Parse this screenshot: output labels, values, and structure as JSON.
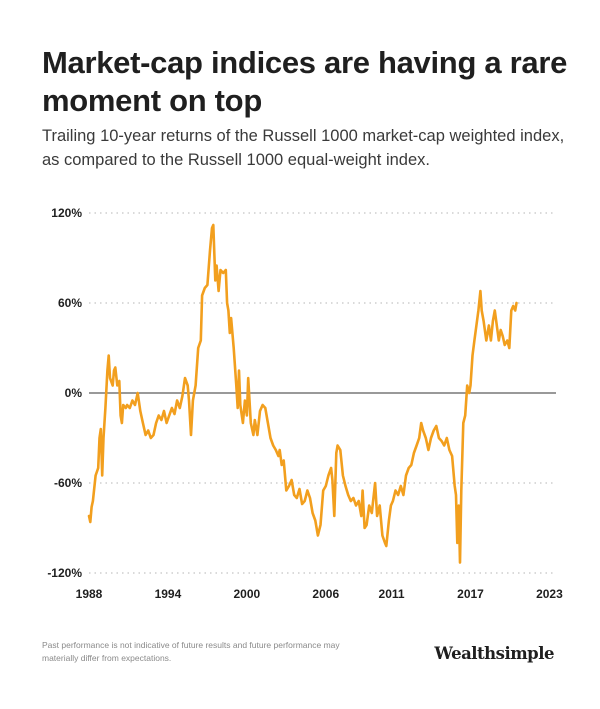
{
  "title": "Market-cap indices are having a rare moment on top",
  "subtitle": "Trailing 10-year returns of the Russell 1000 market-cap weighted index, as compared to the Russell 1000 equal-weight index.",
  "footnote": "Past performance is not indicative of future results and future performance may materially differ from expectations.",
  "brand": "Wealthsimple",
  "colors": {
    "line": "#f29f1e",
    "zero_line": "#333333",
    "grid": "#b5b5b5"
  },
  "chart_data": {
    "type": "line",
    "title": "Market-cap indices are having a rare moment on top",
    "xlim": [
      1988,
      2023.5
    ],
    "ylim": [
      -120,
      120
    ],
    "y_ticks": [
      120,
      60,
      0,
      -60,
      -120
    ],
    "y_tick_labels": [
      "120%",
      "60%",
      "0%",
      "-60%",
      "-120%"
    ],
    "x_ticks": [
      1988,
      1994,
      2000,
      2006,
      2011,
      2017,
      2023
    ],
    "x_tick_labels": [
      "1988",
      "1994",
      "2000",
      "2006",
      "2011",
      "2017",
      "2023"
    ],
    "grid": "horizontal dotted",
    "zero_line": true,
    "series": [
      {
        "points": [
          [
            1988.0,
            -82
          ],
          [
            1988.1,
            -86
          ],
          [
            1988.2,
            -76
          ],
          [
            1988.3,
            -72
          ],
          [
            1988.5,
            -55
          ],
          [
            1988.7,
            -50
          ],
          [
            1988.8,
            -30
          ],
          [
            1988.9,
            -24
          ],
          [
            1989.0,
            -55
          ],
          [
            1989.1,
            -30
          ],
          [
            1989.25,
            -10
          ],
          [
            1989.4,
            15
          ],
          [
            1989.5,
            25
          ],
          [
            1989.6,
            10
          ],
          [
            1989.8,
            5
          ],
          [
            1989.9,
            15
          ],
          [
            1990.0,
            17
          ],
          [
            1990.15,
            5
          ],
          [
            1990.3,
            8
          ],
          [
            1990.4,
            -15
          ],
          [
            1990.5,
            -20
          ],
          [
            1990.6,
            -8
          ],
          [
            1990.8,
            -10
          ],
          [
            1990.9,
            -8
          ],
          [
            1991.1,
            -10
          ],
          [
            1991.3,
            -5
          ],
          [
            1991.5,
            -8
          ],
          [
            1991.7,
            0
          ],
          [
            1991.9,
            -12
          ],
          [
            1992.1,
            -20
          ],
          [
            1992.3,
            -28
          ],
          [
            1992.5,
            -25
          ],
          [
            1992.7,
            -30
          ],
          [
            1992.9,
            -28
          ],
          [
            1993.1,
            -20
          ],
          [
            1993.3,
            -15
          ],
          [
            1993.5,
            -18
          ],
          [
            1993.7,
            -12
          ],
          [
            1993.9,
            -20
          ],
          [
            1994.1,
            -15
          ],
          [
            1994.3,
            -10
          ],
          [
            1994.5,
            -14
          ],
          [
            1994.7,
            -5
          ],
          [
            1994.9,
            -10
          ],
          [
            1995.1,
            -2
          ],
          [
            1995.3,
            10
          ],
          [
            1995.5,
            5
          ],
          [
            1995.6,
            -5
          ],
          [
            1995.75,
            -28
          ],
          [
            1995.9,
            -5
          ],
          [
            1996.1,
            5
          ],
          [
            1996.3,
            30
          ],
          [
            1996.5,
            35
          ],
          [
            1996.6,
            65
          ],
          [
            1996.8,
            70
          ],
          [
            1997.0,
            72
          ],
          [
            1997.2,
            95
          ],
          [
            1997.35,
            110
          ],
          [
            1997.45,
            112
          ],
          [
            1997.6,
            75
          ],
          [
            1997.7,
            85
          ],
          [
            1997.85,
            68
          ],
          [
            1998.0,
            82
          ],
          [
            1998.2,
            80
          ],
          [
            1998.4,
            82
          ],
          [
            1998.5,
            60
          ],
          [
            1998.6,
            55
          ],
          [
            1998.7,
            40
          ],
          [
            1998.8,
            50
          ],
          [
            1999.0,
            30
          ],
          [
            1999.2,
            5
          ],
          [
            1999.3,
            -10
          ],
          [
            1999.4,
            15
          ],
          [
            1999.5,
            -8
          ],
          [
            1999.7,
            -20
          ],
          [
            1999.85,
            -5
          ],
          [
            2000.0,
            -15
          ],
          [
            2000.1,
            10
          ],
          [
            2000.3,
            -20
          ],
          [
            2000.5,
            -28
          ],
          [
            2000.6,
            -18
          ],
          [
            2000.8,
            -28
          ],
          [
            2001.0,
            -12
          ],
          [
            2001.2,
            -8
          ],
          [
            2001.4,
            -10
          ],
          [
            2001.6,
            -20
          ],
          [
            2001.8,
            -30
          ],
          [
            2002.0,
            -35
          ],
          [
            2002.2,
            -38
          ],
          [
            2002.4,
            -42
          ],
          [
            2002.5,
            -38
          ],
          [
            2002.65,
            -48
          ],
          [
            2002.8,
            -45
          ],
          [
            2003.0,
            -65
          ],
          [
            2003.2,
            -62
          ],
          [
            2003.4,
            -58
          ],
          [
            2003.6,
            -68
          ],
          [
            2003.8,
            -70
          ],
          [
            2004.0,
            -64
          ],
          [
            2004.2,
            -74
          ],
          [
            2004.4,
            -72
          ],
          [
            2004.6,
            -65
          ],
          [
            2004.8,
            -70
          ],
          [
            2005.0,
            -80
          ],
          [
            2005.2,
            -85
          ],
          [
            2005.4,
            -95
          ],
          [
            2005.6,
            -88
          ],
          [
            2005.8,
            -65
          ],
          [
            2006.0,
            -62
          ],
          [
            2006.2,
            -55
          ],
          [
            2006.4,
            -50
          ],
          [
            2006.5,
            -58
          ],
          [
            2006.65,
            -82
          ],
          [
            2006.8,
            -40
          ],
          [
            2006.9,
            -35
          ],
          [
            2007.1,
            -38
          ],
          [
            2007.3,
            -55
          ],
          [
            2007.5,
            -62
          ],
          [
            2007.7,
            -68
          ],
          [
            2007.9,
            -72
          ],
          [
            2008.1,
            -70
          ],
          [
            2008.3,
            -75
          ],
          [
            2008.5,
            -72
          ],
          [
            2008.7,
            -82
          ],
          [
            2008.8,
            -65
          ],
          [
            2008.95,
            -90
          ],
          [
            2009.1,
            -88
          ],
          [
            2009.3,
            -75
          ],
          [
            2009.5,
            -80
          ],
          [
            2009.6,
            -72
          ],
          [
            2009.75,
            -60
          ],
          [
            2009.9,
            -82
          ],
          [
            2010.1,
            -75
          ],
          [
            2010.3,
            -95
          ],
          [
            2010.5,
            -100
          ],
          [
            2010.6,
            -102
          ],
          [
            2010.8,
            -85
          ],
          [
            2010.95,
            -75
          ],
          [
            2011.1,
            -72
          ],
          [
            2011.3,
            -65
          ],
          [
            2011.5,
            -68
          ],
          [
            2011.7,
            -62
          ],
          [
            2011.9,
            -68
          ],
          [
            2012.1,
            -55
          ],
          [
            2012.3,
            -50
          ],
          [
            2012.5,
            -48
          ],
          [
            2012.7,
            -40
          ],
          [
            2012.9,
            -35
          ],
          [
            2013.1,
            -30
          ],
          [
            2013.25,
            -20
          ],
          [
            2013.4,
            -25
          ],
          [
            2013.6,
            -30
          ],
          [
            2013.8,
            -38
          ],
          [
            2014.0,
            -30
          ],
          [
            2014.2,
            -25
          ],
          [
            2014.4,
            -22
          ],
          [
            2014.6,
            -30
          ],
          [
            2014.8,
            -32
          ],
          [
            2015.0,
            -35
          ],
          [
            2015.2,
            -30
          ],
          [
            2015.4,
            -38
          ],
          [
            2015.6,
            -42
          ],
          [
            2015.8,
            -62
          ],
          [
            2015.9,
            -68
          ],
          [
            2016.0,
            -100
          ],
          [
            2016.1,
            -75
          ],
          [
            2016.2,
            -113
          ],
          [
            2016.3,
            -65
          ],
          [
            2016.45,
            -20
          ],
          [
            2016.6,
            -15
          ],
          [
            2016.75,
            5
          ],
          [
            2016.9,
            0
          ],
          [
            2017.0,
            5
          ],
          [
            2017.15,
            25
          ],
          [
            2017.3,
            35
          ],
          [
            2017.45,
            45
          ],
          [
            2017.6,
            55
          ],
          [
            2017.75,
            68
          ],
          [
            2017.85,
            55
          ],
          [
            2018.0,
            48
          ],
          [
            2018.2,
            35
          ],
          [
            2018.4,
            45
          ],
          [
            2018.55,
            35
          ],
          [
            2018.7,
            48
          ],
          [
            2018.85,
            55
          ],
          [
            2019.0,
            45
          ],
          [
            2019.15,
            35
          ],
          [
            2019.3,
            42
          ],
          [
            2019.45,
            38
          ],
          [
            2019.6,
            32
          ],
          [
            2019.8,
            35
          ],
          [
            2019.95,
            30
          ],
          [
            2020.1,
            55
          ],
          [
            2020.25,
            58
          ],
          [
            2020.4,
            55
          ],
          [
            2020.5,
            60
          ]
        ]
      }
    ]
  }
}
